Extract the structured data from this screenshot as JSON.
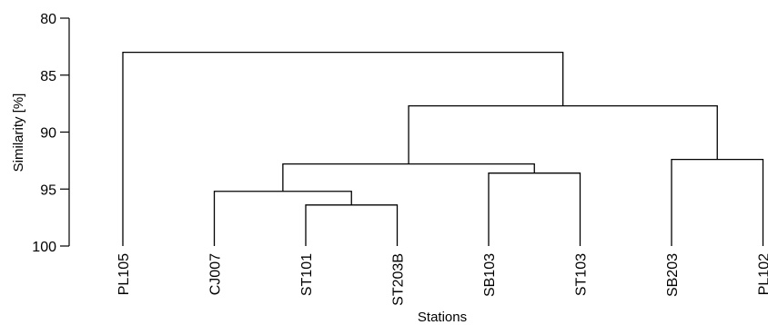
{
  "chart_data": {
    "type": "dendrogram",
    "xlabel": "Stations",
    "ylabel": "Similarity [%]",
    "ylim": [
      80,
      100
    ],
    "yticks": [
      80,
      85,
      90,
      95,
      100
    ],
    "leaves": [
      "PL105",
      "CJ007",
      "ST101",
      "ST203B",
      "SB103",
      "ST103",
      "SB203",
      "PL102"
    ],
    "merges": [
      {
        "id": "m1",
        "left": "ST101",
        "right": "ST203B",
        "similarity": 96.4
      },
      {
        "id": "m2",
        "left": "CJ007",
        "right": "m1",
        "similarity": 95.2
      },
      {
        "id": "m3",
        "left": "SB103",
        "right": "ST103",
        "similarity": 93.6
      },
      {
        "id": "m4",
        "left": "m2",
        "right": "m3",
        "similarity": 92.8
      },
      {
        "id": "m5",
        "left": "SB203",
        "right": "PL102",
        "similarity": 92.4
      },
      {
        "id": "m6",
        "left": "m4",
        "right": "m5",
        "similarity": 87.7
      },
      {
        "id": "m7",
        "left": "PL105",
        "right": "m6",
        "similarity": 83.0
      }
    ]
  }
}
